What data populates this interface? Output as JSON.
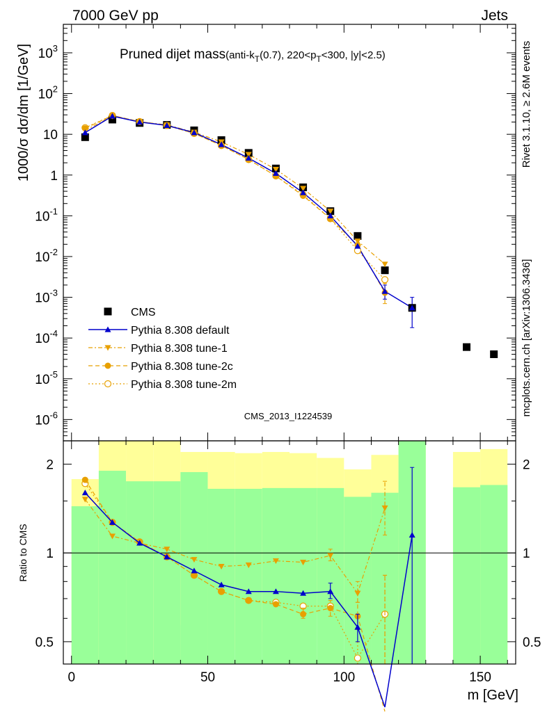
{
  "header": {
    "left": "7000 GeV pp",
    "right": "Jets"
  },
  "side": {
    "rivet": "Rivet 3.1.10, ≥ 2.6M events",
    "mcplots": "mcplots.cern.ch [arXiv:1306.3436]"
  },
  "colors": {
    "data": "#000000",
    "default": "#0000cc",
    "tune": "#e8a000",
    "band_inner": "#99ff99",
    "band_outer": "#ffff99",
    "watermark": "#888888"
  },
  "chart_data": [
    {
      "type": "scatter",
      "title": "Pruned dijet mass",
      "title_detail": "(anti-k_T(0.7), 220<p_T<300, |y|<2.5)",
      "ylabel": "1000/σ dσ/dm [1/GeV]",
      "watermark": "CMS_2013_I1224539",
      "yscale": "log",
      "ylim": [
        3e-07,
        5000
      ],
      "xlim": [
        -3,
        163
      ],
      "y_ticklabels": [
        "10^-6",
        "10^-5",
        "10^-4",
        "10^-3",
        "10^-2",
        "10^-1",
        "1",
        "10",
        "10^2",
        "10^3"
      ],
      "legend_position": "bottom-left",
      "series": [
        {
          "name": "CMS",
          "marker": "square",
          "x": [
            5,
            15,
            25,
            35,
            45,
            55,
            65,
            75,
            85,
            95,
            105,
            115,
            125,
            145,
            155
          ],
          "y": [
            8.5,
            23,
            19,
            17,
            12.5,
            7.2,
            3.5,
            1.45,
            0.5,
            0.13,
            0.032,
            0.0046,
            0.00055,
            6e-05,
            4e-05
          ]
        },
        {
          "name": "Pythia 8.308 default",
          "marker": "triangle-up",
          "x": [
            5,
            15,
            25,
            35,
            45,
            55,
            65,
            75,
            85,
            95,
            105,
            115,
            125
          ],
          "y": [
            11,
            28,
            20,
            16.5,
            11,
            5.6,
            2.6,
            1.1,
            0.37,
            0.1,
            0.018,
            0.0014,
            0.00055
          ]
        },
        {
          "name": "Pythia 8.308 tune-1",
          "marker": "triangle-down",
          "x": [
            5,
            15,
            25,
            35,
            45,
            55,
            65,
            75,
            85,
            95,
            105,
            115
          ],
          "y": [
            12.5,
            28,
            20.5,
            17,
            11.3,
            6.5,
            3.2,
            1.38,
            0.47,
            0.13,
            0.024,
            0.0065
          ]
        },
        {
          "name": "Pythia 8.308 tune-2c",
          "marker": "circle",
          "x": [
            5,
            15,
            25,
            35,
            45,
            55,
            65,
            75,
            85,
            95,
            105,
            115
          ],
          "y": [
            14,
            29,
            20.5,
            16.5,
            10.5,
            5.3,
            2.4,
            0.95,
            0.31,
            0.085,
            0.019,
            0.0013
          ]
        },
        {
          "name": "Pythia 8.308 tune-2m",
          "marker": "open-circle",
          "x": [
            5,
            15,
            25,
            35,
            45,
            55,
            65,
            75,
            85,
            95,
            105,
            115
          ],
          "y": [
            14.5,
            29,
            20.5,
            16.5,
            10.5,
            5.3,
            2.4,
            0.95,
            0.33,
            0.085,
            0.014,
            0.0027
          ]
        }
      ]
    },
    {
      "type": "line",
      "ylabel": "Ratio to CMS",
      "xlabel": "m [GeV]",
      "yscale": "log",
      "ylim": [
        0.42,
        2.4
      ],
      "xlim": [
        -3,
        163
      ],
      "x_ticks": [
        0,
        50,
        100,
        150
      ],
      "y_ticks": [
        0.5,
        1,
        2
      ],
      "bands": {
        "edges": [
          0,
          10,
          20,
          30,
          40,
          50,
          60,
          70,
          80,
          90,
          100,
          110,
          120,
          130,
          140,
          150,
          160
        ],
        "outer_low": [
          0.42,
          0.42,
          0.42,
          0.42,
          0.57,
          0.47,
          0.47,
          0.54,
          0.62,
          0.62,
          0.62,
          0.72,
          0.42,
          null,
          0.42,
          0.42
        ],
        "outer_high": [
          1.78,
          2.6,
          2.6,
          2.6,
          2.2,
          2.2,
          2.18,
          2.2,
          2.18,
          2.1,
          1.92,
          2.15,
          2.6,
          null,
          2.2,
          2.25
        ],
        "inner_low": [
          0.42,
          0.42,
          0.42,
          0.42,
          0.42,
          0.42,
          0.42,
          0.42,
          0.42,
          0.42,
          0.42,
          0.42,
          0.42,
          null,
          0.42,
          0.42
        ],
        "inner_high": [
          1.44,
          1.9,
          1.75,
          1.75,
          1.88,
          1.65,
          1.65,
          1.66,
          1.66,
          1.66,
          1.55,
          1.6,
          2.6,
          null,
          1.67,
          1.7
        ]
      },
      "series": [
        {
          "name": "Pythia 8.308 default",
          "x": [
            5,
            15,
            25,
            35,
            45,
            55,
            65,
            75,
            85,
            95,
            105,
            115,
            125
          ],
          "y": [
            1.6,
            1.27,
            1.08,
            0.97,
            0.87,
            0.78,
            0.74,
            0.74,
            0.73,
            0.74,
            0.56,
            0.3,
            1.15
          ]
        },
        {
          "name": "Pythia 8.308 tune-1",
          "x": [
            5,
            15,
            25,
            35,
            45,
            55,
            65,
            75,
            85,
            95,
            105,
            115
          ],
          "y": [
            1.52,
            1.14,
            1.08,
            1.03,
            0.95,
            0.9,
            0.91,
            0.94,
            0.93,
            0.98,
            0.73,
            1.42
          ]
        },
        {
          "name": "Pythia 8.308 tune-2c",
          "x": [
            5,
            15,
            25,
            35,
            45,
            55,
            65,
            75,
            85,
            95,
            105,
            115
          ],
          "y": [
            1.77,
            1.27,
            1.09,
            0.97,
            0.84,
            0.74,
            0.69,
            0.67,
            0.62,
            0.65,
            0.61,
            0.29
          ]
        },
        {
          "name": "Pythia 8.308 tune-2m",
          "x": [
            5,
            15,
            25,
            35,
            45,
            55,
            65,
            75,
            85,
            95,
            105,
            115
          ],
          "y": [
            1.72,
            1.27,
            1.09,
            0.97,
            0.84,
            0.74,
            0.69,
            0.68,
            0.66,
            0.66,
            0.44,
            0.62
          ]
        }
      ]
    }
  ]
}
